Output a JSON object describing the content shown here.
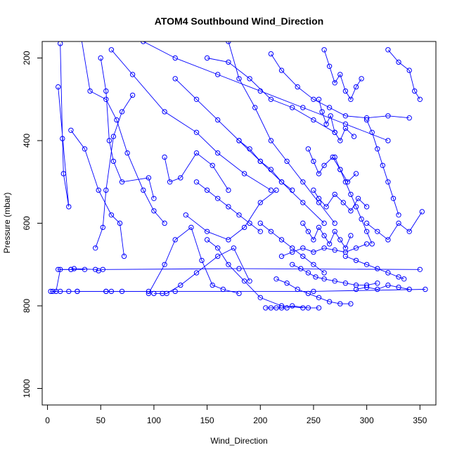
{
  "chart_data": {
    "type": "line",
    "title": "ATOM4 Southbound Wind_Direction",
    "xlabel": "Wind_Direction",
    "ylabel": "Pressure (mbar)",
    "xlim": [
      -5,
      365
    ],
    "ylim": [
      1040,
      160
    ],
    "y_reversed": true,
    "x_ticks": [
      0,
      50,
      100,
      150,
      200,
      250,
      300,
      350
    ],
    "y_ticks": [
      200,
      400,
      600,
      800,
      1000
    ],
    "grid": false,
    "legend": "none",
    "colors": {
      "series": "#0000ff",
      "axis": "#000000",
      "background": "#ffffff"
    },
    "series": [
      {
        "x": [
          12,
          14,
          15,
          20,
          10
        ],
        "y": [
          165,
          395,
          480,
          560,
          270
        ]
      },
      {
        "x": [
          5,
          12,
          20,
          28,
          55,
          60,
          70,
          95
        ],
        "y": [
          765,
          765,
          765,
          765,
          765,
          765,
          765,
          765
        ]
      },
      {
        "x": [
          3,
          8,
          12,
          22,
          35
        ],
        "y": [
          765,
          765,
          712,
          712,
          712
        ]
      },
      {
        "x": [
          10,
          22,
          25,
          45,
          48,
          52,
          180,
          350
        ],
        "y": [
          712,
          712,
          710,
          712,
          715,
          712,
          710,
          712
        ]
      },
      {
        "x": [
          28,
          55,
          120,
          250,
          355
        ],
        "y": [
          765,
          765,
          765,
          765,
          760
        ]
      },
      {
        "x": [
          22,
          35,
          48,
          60,
          68,
          72
        ],
        "y": [
          375,
          420,
          520,
          580,
          600,
          680
        ]
      },
      {
        "x": [
          30,
          40,
          55,
          65,
          75,
          90,
          100,
          110
        ],
        "y": [
          125,
          280,
          300,
          350,
          430,
          520,
          570,
          600
        ]
      },
      {
        "x": [
          50,
          55,
          58,
          62,
          70,
          95,
          100
        ],
        "y": [
          200,
          280,
          400,
          450,
          500,
          490,
          540
        ]
      },
      {
        "x": [
          45,
          52,
          55,
          62,
          70,
          80
        ],
        "y": [
          660,
          610,
          520,
          390,
          330,
          290
        ]
      },
      {
        "x": [
          95,
          110,
          120,
          135,
          145,
          155,
          165,
          180
        ],
        "y": [
          770,
          700,
          640,
          610,
          690,
          750,
          760,
          770
        ]
      },
      {
        "x": [
          110,
          115,
          125,
          140,
          155,
          170
        ],
        "y": [
          440,
          500,
          490,
          430,
          460,
          520
        ]
      },
      {
        "x": [
          100,
          108,
          112,
          125,
          140,
          160,
          175,
          190
        ],
        "y": [
          770,
          770,
          770,
          750,
          720,
          680,
          660,
          740
        ]
      },
      {
        "x": [
          130,
          150,
          170,
          185,
          200,
          215
        ],
        "y": [
          580,
          620,
          640,
          610,
          550,
          520
        ]
      },
      {
        "x": [
          60,
          80,
          110,
          140,
          160,
          185,
          210
        ],
        "y": [
          180,
          240,
          330,
          380,
          430,
          480,
          520
        ]
      },
      {
        "x": [
          150,
          160,
          170,
          185,
          200,
          220,
          240
        ],
        "y": [
          640,
          660,
          700,
          740,
          780,
          800,
          805
        ]
      },
      {
        "x": [
          205,
          210,
          215,
          220,
          225,
          230,
          245,
          255
        ],
        "y": [
          805,
          805,
          805,
          805,
          805,
          800,
          805,
          805
        ]
      },
      {
        "x": [
          215,
          225,
          235,
          245,
          255,
          265,
          275,
          285
        ],
        "y": [
          735,
          745,
          760,
          770,
          780,
          790,
          795,
          795
        ]
      },
      {
        "x": [
          230,
          238,
          245,
          252,
          260,
          270,
          280,
          290,
          300,
          310
        ],
        "y": [
          700,
          710,
          720,
          730,
          735,
          740,
          745,
          750,
          750,
          745
        ]
      },
      {
        "x": [
          220,
          230,
          240,
          250,
          260,
          270,
          280,
          290,
          300
        ],
        "y": [
          680,
          670,
          660,
          670,
          660,
          665,
          670,
          660,
          650
        ]
      },
      {
        "x": [
          240,
          245,
          250,
          255,
          260,
          265,
          270,
          275,
          280,
          285
        ],
        "y": [
          600,
          620,
          640,
          610,
          630,
          650,
          620,
          640,
          660,
          630
        ]
      },
      {
        "x": [
          250,
          255,
          262,
          270,
          278,
          285,
          292,
          300
        ],
        "y": [
          520,
          540,
          560,
          530,
          550,
          570,
          540,
          560
        ]
      },
      {
        "x": [
          245,
          250,
          255,
          260,
          268,
          275,
          282,
          290
        ],
        "y": [
          420,
          450,
          480,
          460,
          440,
          470,
          500,
          480
        ]
      },
      {
        "x": [
          255,
          258,
          262,
          266,
          270,
          275,
          280,
          288
        ],
        "y": [
          300,
          330,
          360,
          340,
          380,
          400,
          370,
          390
        ]
      },
      {
        "x": [
          260,
          265,
          270,
          275,
          280,
          285,
          290,
          295
        ],
        "y": [
          180,
          220,
          260,
          240,
          280,
          300,
          270,
          250
        ]
      },
      {
        "x": [
          210,
          220,
          235,
          250,
          265,
          280,
          300,
          320,
          340
        ],
        "y": [
          190,
          230,
          270,
          300,
          320,
          340,
          345,
          340,
          345
        ]
      },
      {
        "x": [
          320,
          330,
          340,
          345,
          350
        ],
        "y": [
          180,
          210,
          230,
          280,
          300
        ]
      },
      {
        "x": [
          300,
          310,
          320,
          330,
          340,
          352
        ],
        "y": [
          600,
          620,
          640,
          600,
          620,
          572
        ]
      },
      {
        "x": [
          280,
          290,
          300,
          310,
          320,
          330,
          335
        ],
        "y": [
          680,
          690,
          700,
          710,
          720,
          730,
          735
        ]
      },
      {
        "x": [
          290,
          300,
          310,
          320,
          330,
          340
        ],
        "y": [
          760,
          755,
          760,
          750,
          755,
          760
        ]
      },
      {
        "x": [
          150,
          170,
          190,
          210,
          230,
          250,
          270
        ],
        "y": [
          200,
          210,
          250,
          300,
          320,
          350,
          380
        ]
      },
      {
        "x": [
          170,
          180,
          195,
          210,
          225,
          240,
          255,
          270
        ],
        "y": [
          160,
          250,
          320,
          400,
          450,
          500,
          550,
          600
        ]
      },
      {
        "x": [
          120,
          140,
          160,
          180,
          200,
          220,
          240,
          260
        ],
        "y": [
          250,
          300,
          350,
          400,
          450,
          500,
          550,
          600
        ]
      },
      {
        "x": [
          90,
          120,
          160,
          200,
          240,
          280,
          320
        ],
        "y": [
          160,
          200,
          240,
          280,
          320,
          360,
          400
        ]
      },
      {
        "x": [
          180,
          190,
          200,
          210,
          220,
          230
        ],
        "y": [
          400,
          420,
          450,
          470,
          500,
          520
        ]
      },
      {
        "x": [
          140,
          150,
          160,
          170,
          180,
          190,
          200
        ],
        "y": [
          500,
          520,
          540,
          560,
          580,
          600,
          620
        ]
      },
      {
        "x": [
          200,
          210,
          220,
          230,
          240,
          250,
          260
        ],
        "y": [
          600,
          620,
          640,
          660,
          680,
          700,
          720
        ]
      },
      {
        "x": [
          300,
          305,
          310,
          315,
          320,
          325,
          330
        ],
        "y": [
          350,
          380,
          420,
          460,
          500,
          540,
          580
        ]
      },
      {
        "x": [
          270,
          275,
          280,
          285,
          290,
          295,
          300,
          305
        ],
        "y": [
          440,
          470,
          500,
          530,
          560,
          590,
          620,
          650
        ]
      }
    ]
  }
}
